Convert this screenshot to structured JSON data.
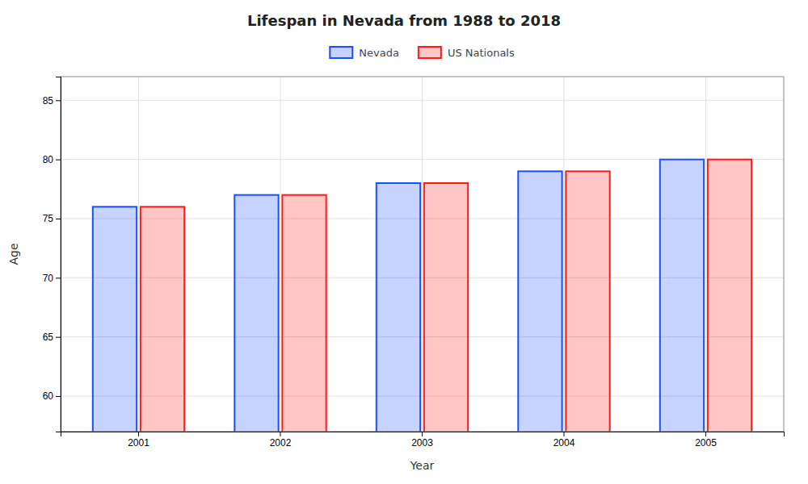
{
  "chart_data": {
    "type": "bar",
    "title": "Lifespan in Nevada from 1988 to 2018",
    "categories": [
      "2001",
      "2002",
      "2003",
      "2004",
      "2005"
    ],
    "series": [
      {
        "name": "Nevada",
        "color": "#1a4fff",
        "values": [
          76,
          77,
          78,
          79,
          80
        ]
      },
      {
        "name": "US Nationals",
        "color": "#ff1a1a",
        "values": [
          76,
          77,
          78,
          79,
          80
        ]
      }
    ],
    "xlabel": "Year",
    "ylabel": "Age",
    "ylim": [
      57,
      87
    ],
    "yticks": [
      60,
      65,
      70,
      75,
      80,
      85
    ],
    "grid": true,
    "legend": "top"
  }
}
